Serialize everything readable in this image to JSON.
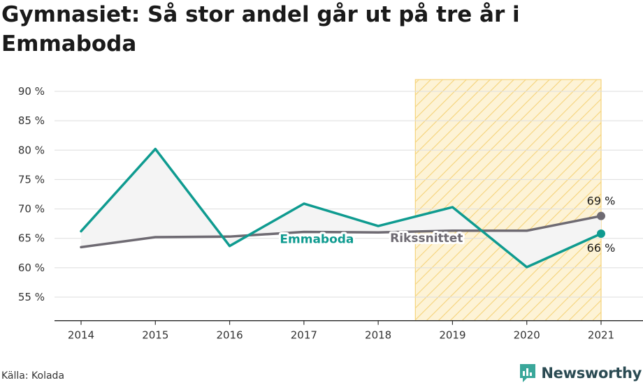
{
  "title": "Gymnasiet: Så stor andel går ut på tre år i Emmaboda",
  "source": "Källa: Kolada",
  "brand": {
    "name": "Newsworthy",
    "icon": "newsworthy-logo-icon"
  },
  "colors": {
    "emmaboda": "#0f9b90",
    "riksnittet": "#6e6a72",
    "highlight_fill": "#fdf3d6",
    "highlight_hatch": "#f5d37a",
    "area_fill": "#f4f4f4",
    "grid": "#dddddd"
  },
  "chart_data": {
    "type": "line",
    "title": "Gymnasiet: Så stor andel går ut på tre år i Emmaboda",
    "x": [
      "2014",
      "2015",
      "2016",
      "2017",
      "2018",
      "2019",
      "2020",
      "2021"
    ],
    "ylim": [
      51,
      92
    ],
    "yticks": [
      55,
      60,
      65,
      70,
      75,
      80,
      85,
      90
    ],
    "ytick_labels": [
      "55 %",
      "60 %",
      "65 %",
      "70 %",
      "75 %",
      "80 %",
      "85 %",
      "90 %"
    ],
    "grid": true,
    "highlight_range": [
      "2019",
      "2021"
    ],
    "series": [
      {
        "name": "Emmaboda",
        "values": [
          66.2,
          80.2,
          63.7,
          70.9,
          67.1,
          70.3,
          60.1,
          65.8
        ],
        "end_label": "66 %"
      },
      {
        "name": "Rikssnittet",
        "values": [
          63.5,
          65.2,
          65.3,
          66.1,
          66.0,
          66.3,
          66.3,
          68.8
        ],
        "end_label": "69 %"
      }
    ]
  }
}
